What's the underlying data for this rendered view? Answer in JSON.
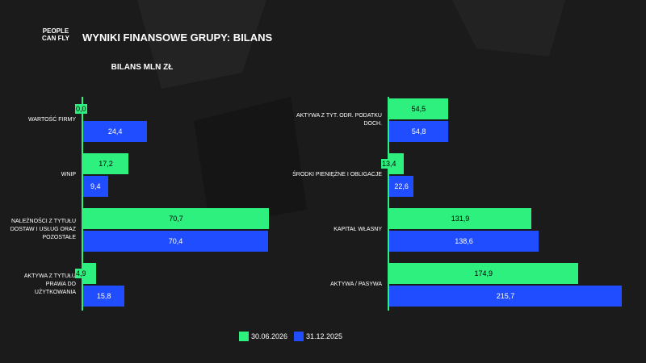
{
  "header": {
    "logo": "PEOPLE CAN FLY",
    "title": "WYNIKI FINANSOWE GRUPY: BILANS",
    "subtitle": "BILANS MLN ZŁ"
  },
  "chart_data": [
    {
      "type": "bar",
      "orientation": "horizontal",
      "categories": [
        "WARTOŚĆ FIRMY",
        "WNIP",
        "NALEŻNOŚCI Z TYTUŁU DOSTAW I USŁUG ORAZ POZOSTAŁE",
        "AKTYWA Z TYTUŁU PRAWA DO UŻYTKOWANIA"
      ],
      "series": [
        {
          "name": "30.06.2026",
          "color": "#2ef07f",
          "values": [
            0.0,
            17.2,
            70.7,
            4.9
          ],
          "value_labels": [
            "0,0",
            "17,2",
            "70,7",
            "4,9"
          ]
        },
        {
          "name": "31.12.2025",
          "color": "#1f4dff",
          "values": [
            24.4,
            9.4,
            70.4,
            15.8
          ],
          "value_labels": [
            "24,4",
            "9,4",
            "70,4",
            "15,8"
          ]
        }
      ]
    },
    {
      "type": "bar",
      "orientation": "horizontal",
      "categories": [
        "AKTYWA Z TYT. ODR. PODATKU DOCH.",
        "ŚRODKI PIENIĘŻNE I OBLIGACJE",
        "KAPITAŁ WŁASNY",
        "AKTYWA / PASYWA"
      ],
      "series": [
        {
          "name": "30.06.2026",
          "color": "#2ef07f",
          "values": [
            54.5,
            13.4,
            131.9,
            174.9
          ],
          "value_labels": [
            "54,5",
            "13,4",
            "131,9",
            "174,9"
          ]
        },
        {
          "name": "31.12.2025",
          "color": "#1f4dff",
          "values": [
            54.8,
            22.6,
            138.6,
            215.7
          ],
          "value_labels": [
            "54,8",
            "22,6",
            "138,6",
            "215,7"
          ]
        }
      ]
    }
  ]
}
